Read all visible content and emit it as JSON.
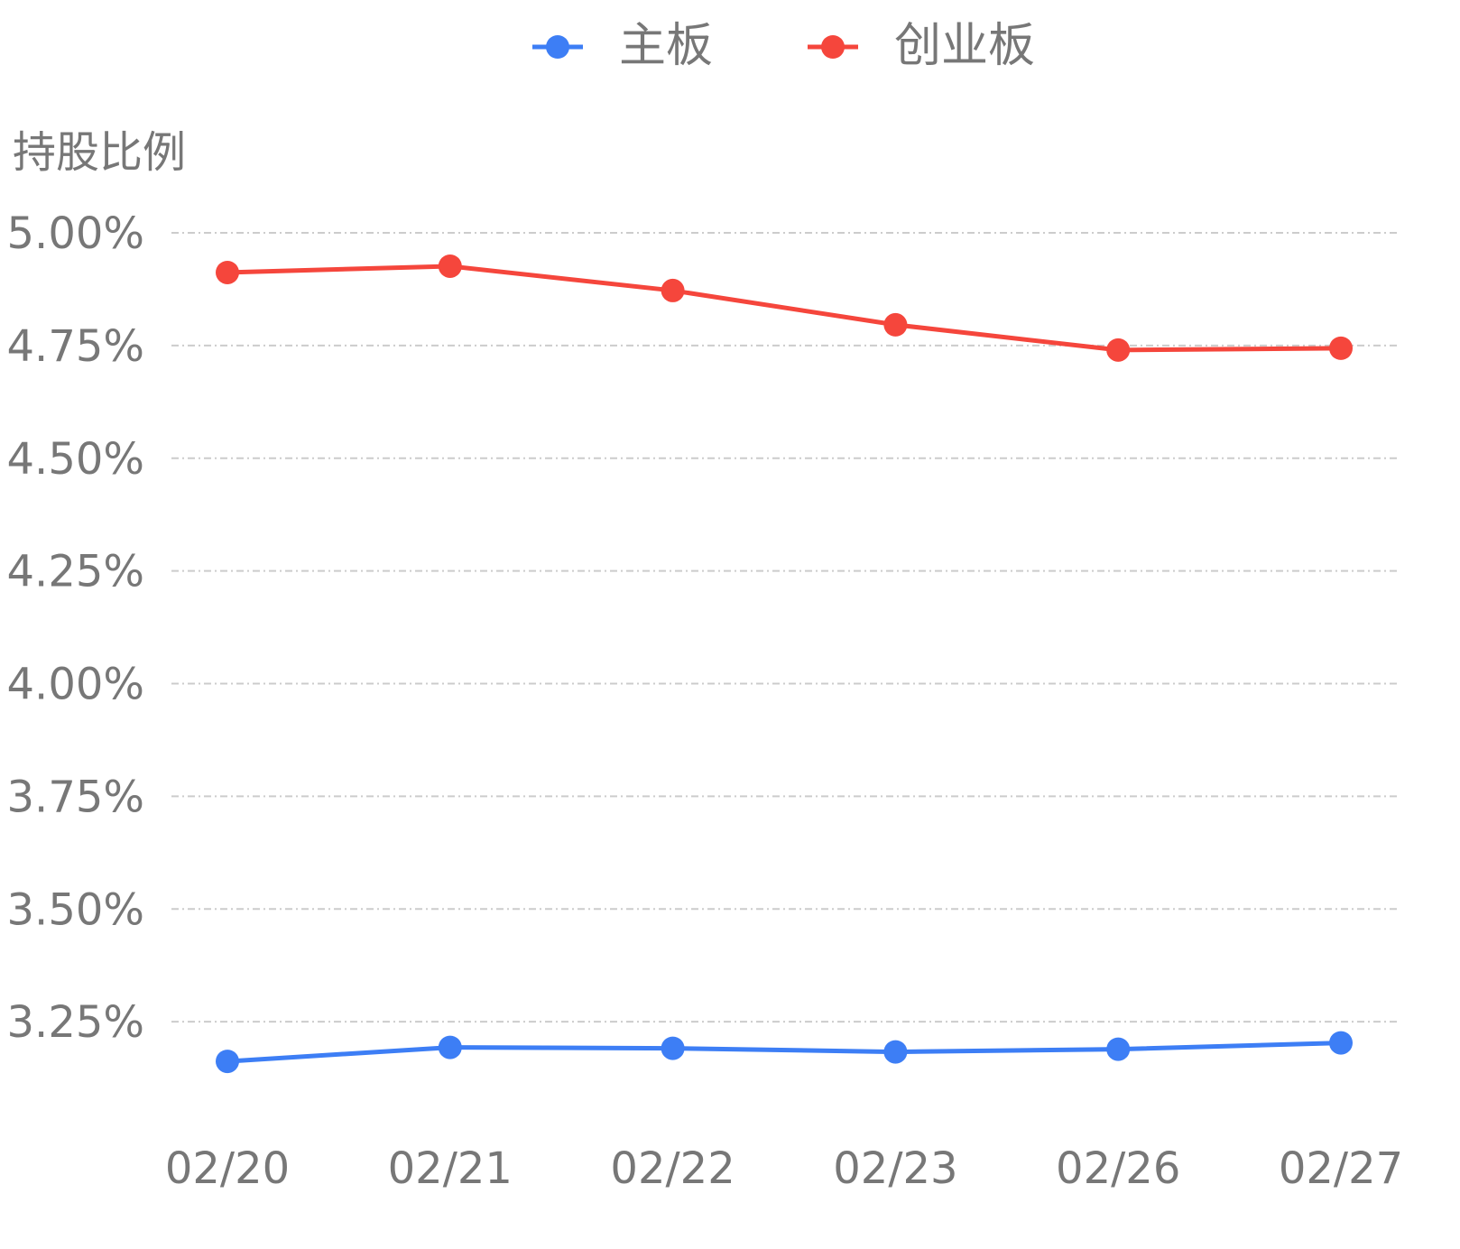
{
  "chart_data": {
    "type": "line",
    "y_axis_title": "持股比例",
    "categories": [
      "02/20",
      "02/21",
      "02/22",
      "02/23",
      "02/26",
      "02/27"
    ],
    "series": [
      {
        "name": "主板",
        "color": "#3d7ef5",
        "values": [
          3.162,
          3.193,
          3.191,
          3.183,
          3.189,
          3.203
        ]
      },
      {
        "name": "创业板",
        "color": "#f5463c",
        "values": [
          4.912,
          4.926,
          4.872,
          4.796,
          4.74,
          4.744
        ]
      }
    ],
    "ylim": [
      3.0,
      5.0
    ],
    "yticks": [
      {
        "value": 3.25,
        "label": "3.25%"
      },
      {
        "value": 3.5,
        "label": "3.50%"
      },
      {
        "value": 3.75,
        "label": "3.75%"
      },
      {
        "value": 4.0,
        "label": "4.00%"
      },
      {
        "value": 4.25,
        "label": "4.25%"
      },
      {
        "value": 4.5,
        "label": "4.50%"
      },
      {
        "value": 4.75,
        "label": "4.75%"
      },
      {
        "value": 5.0,
        "label": "5.00%"
      }
    ],
    "grid": true,
    "legend": "top"
  }
}
